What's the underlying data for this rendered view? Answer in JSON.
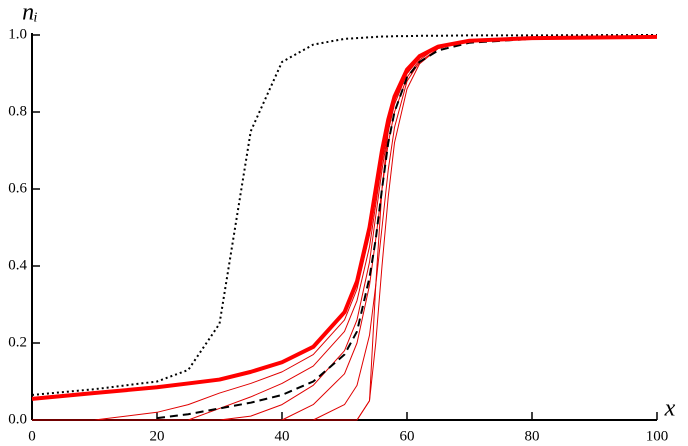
{
  "chart_data": {
    "type": "line",
    "x_label": "x",
    "y_label": "nᵢ",
    "x": [
      0,
      10,
      20,
      25,
      30,
      35,
      40,
      45,
      50,
      52,
      54,
      55,
      56,
      57,
      58,
      60,
      62,
      65,
      70,
      80,
      100
    ],
    "xlim": [
      0,
      100
    ],
    "xticks": [
      0,
      20,
      40,
      60,
      80,
      100
    ],
    "ylim": [
      0,
      1
    ],
    "yticks": [
      {
        "value": 0,
        "label": "0.0"
      },
      {
        "value": 0.2,
        "label": "0.2"
      },
      {
        "value": 0.4,
        "label": "0.4"
      },
      {
        "value": 0.6,
        "label": "0.6"
      },
      {
        "value": 0.8,
        "label": "0.8"
      },
      {
        "value": 1,
        "label": "1.0"
      }
    ],
    "series": [
      {
        "color": "#000000",
        "style": "dotted",
        "width": 2,
        "values": [
          0.065,
          0.08,
          0.1,
          0.13,
          0.25,
          0.75,
          0.93,
          0.975,
          0.99,
          0.992,
          0.994,
          0.995,
          0.996,
          0.996,
          0.997,
          0.997,
          0.998,
          0.998,
          0.999,
          0.999,
          1.0
        ]
      },
      {
        "color": "#e00000",
        "style": "solid",
        "width": 1,
        "values": [
          0,
          0,
          0.02,
          0.04,
          0.07,
          0.095,
          0.125,
          0.17,
          0.26,
          0.34,
          0.48,
          0.58,
          0.68,
          0.77,
          0.83,
          0.9,
          0.94,
          0.97,
          0.985,
          0.992,
          0.995
        ]
      },
      {
        "color": "#e00000",
        "style": "solid",
        "width": 1,
        "values": [
          0,
          0,
          0,
          0,
          0.03,
          0.06,
          0.095,
          0.14,
          0.23,
          0.31,
          0.45,
          0.56,
          0.67,
          0.76,
          0.83,
          0.9,
          0.94,
          0.97,
          0.985,
          0.992,
          0.995
        ]
      },
      {
        "color": "#e00000",
        "style": "solid",
        "width": 1,
        "values": [
          0,
          0,
          0,
          0,
          0,
          0.01,
          0.04,
          0.09,
          0.18,
          0.26,
          0.41,
          0.53,
          0.65,
          0.75,
          0.82,
          0.9,
          0.94,
          0.97,
          0.985,
          0.992,
          0.995
        ]
      },
      {
        "color": "#e00000",
        "style": "solid",
        "width": 1,
        "values": [
          0,
          0,
          0,
          0,
          0,
          0,
          0,
          0.04,
          0.12,
          0.2,
          0.35,
          0.47,
          0.6,
          0.72,
          0.8,
          0.89,
          0.935,
          0.97,
          0.985,
          0.992,
          0.995
        ]
      },
      {
        "color": "#e00000",
        "style": "solid",
        "width": 1,
        "values": [
          0,
          0,
          0,
          0,
          0,
          0,
          0,
          0,
          0.04,
          0.09,
          0.22,
          0.35,
          0.5,
          0.65,
          0.76,
          0.88,
          0.93,
          0.965,
          0.985,
          0.992,
          0.995
        ]
      },
      {
        "color": "#e00000",
        "style": "solid",
        "width": 1,
        "values": [
          0,
          0,
          0,
          0,
          0,
          0,
          0,
          0,
          0,
          0,
          0.05,
          0.2,
          0.4,
          0.58,
          0.72,
          0.86,
          0.925,
          0.965,
          0.985,
          0.992,
          0.995
        ]
      },
      {
        "color": "#e00000",
        "style": "solid",
        "width": 1,
        "values": [
          0,
          0,
          0,
          0,
          0,
          0,
          0,
          0,
          0,
          0,
          0.05,
          0.35,
          0.6,
          0.75,
          0.83,
          0.9,
          0.94,
          0.97,
          0.985,
          0.992,
          0.995
        ]
      },
      {
        "color": "#000000",
        "style": "dashed",
        "width": 2,
        "values": [
          null,
          null,
          0.005,
          0.015,
          0.03,
          0.045,
          0.065,
          0.1,
          0.17,
          0.23,
          0.37,
          0.47,
          0.6,
          0.72,
          0.8,
          0.89,
          0.93,
          0.96,
          0.98,
          0.99,
          0.995
        ]
      },
      {
        "color": "#ff0000",
        "style": "solid",
        "width": 4,
        "values": [
          0.055,
          0.07,
          0.085,
          0.095,
          0.105,
          0.125,
          0.15,
          0.19,
          0.28,
          0.36,
          0.5,
          0.6,
          0.7,
          0.78,
          0.84,
          0.91,
          0.945,
          0.97,
          0.985,
          0.992,
          0.995
        ]
      }
    ]
  }
}
